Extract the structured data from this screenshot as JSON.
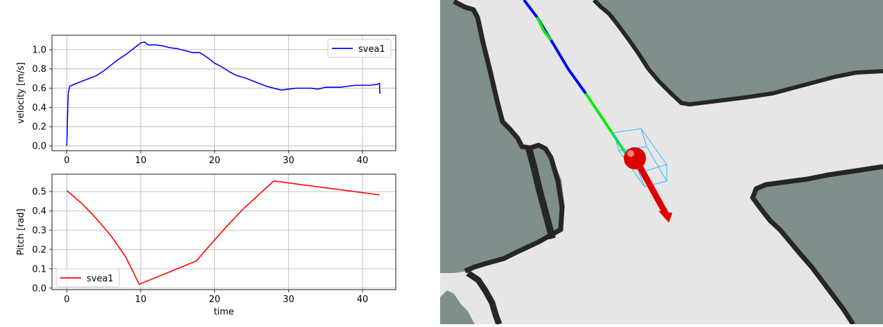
{
  "chart_data": [
    {
      "type": "line",
      "xlabel": "",
      "ylabel": "velocity [m/s]",
      "xlim": [
        -2,
        44.5
      ],
      "ylim": [
        -0.05,
        1.15
      ],
      "xticks": [
        0,
        10,
        20,
        30,
        40
      ],
      "yticks": [
        0.0,
        0.2,
        0.4,
        0.6,
        0.8,
        1.0
      ],
      "ytick_labels": [
        "0.0",
        "0.2",
        "0.4",
        "0.6",
        "0.8",
        "1.0"
      ],
      "grid": true,
      "legend_position": "upper right",
      "series": [
        {
          "name": "svea1",
          "color": "#0000ff",
          "x": [
            0,
            0.1,
            0.2,
            0.4,
            1,
            2,
            3,
            4,
            5,
            6,
            7,
            8,
            9,
            10,
            10.5,
            11,
            12,
            13,
            14,
            15,
            16,
            17,
            18,
            19,
            20,
            21,
            22,
            23,
            24,
            25,
            26,
            27,
            28,
            29,
            30,
            31,
            32,
            33,
            34,
            35,
            36,
            37,
            38,
            39,
            40,
            41,
            42,
            42.3,
            42.35
          ],
          "y": [
            0.0,
            0.3,
            0.55,
            0.62,
            0.64,
            0.67,
            0.7,
            0.73,
            0.78,
            0.84,
            0.9,
            0.95,
            1.01,
            1.07,
            1.08,
            1.05,
            1.05,
            1.04,
            1.02,
            1.01,
            0.99,
            0.97,
            0.97,
            0.92,
            0.86,
            0.82,
            0.77,
            0.73,
            0.71,
            0.68,
            0.65,
            0.62,
            0.6,
            0.58,
            0.59,
            0.6,
            0.6,
            0.6,
            0.59,
            0.61,
            0.61,
            0.61,
            0.62,
            0.63,
            0.63,
            0.63,
            0.64,
            0.65,
            0.54
          ]
        }
      ]
    },
    {
      "type": "line",
      "xlabel": "time",
      "ylabel": "Pitch [rad]",
      "xlim": [
        -2,
        44.5
      ],
      "ylim": [
        -0.008,
        0.59
      ],
      "xticks": [
        0,
        10,
        20,
        30,
        40
      ],
      "yticks": [
        0.0,
        0.1,
        0.2,
        0.3,
        0.4,
        0.5
      ],
      "ytick_labels": [
        "0.0",
        "0.1",
        "0.2",
        "0.3",
        "0.4",
        "0.5"
      ],
      "grid": true,
      "legend_position": "lower left",
      "series": [
        {
          "name": "svea1",
          "color": "#ff0000",
          "x": [
            0,
            2,
            4,
            6,
            8,
            9.8,
            17.5,
            20,
            22,
            24,
            26,
            28,
            42.3
          ],
          "y": [
            0.505,
            0.44,
            0.36,
            0.27,
            0.16,
            0.02,
            0.14,
            0.25,
            0.335,
            0.415,
            0.485,
            0.555,
            0.483
          ]
        }
      ]
    }
  ],
  "map_view": {
    "free_space_color": "#e6e6e6",
    "unknown_color": "#7f8f8b",
    "obstacle_color": "#262626",
    "past_path_color": "#0000ff",
    "planned_path_color": "#00ee00",
    "robot_marker_color": "#dd0000",
    "bounding_box_color": "#33b5ff"
  }
}
